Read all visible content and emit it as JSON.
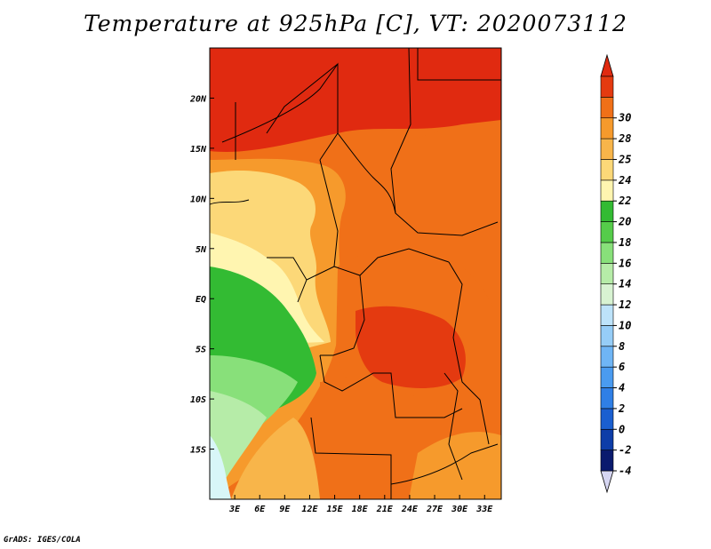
{
  "title": "Temperature at 925hPa [C], VT: 2020073112",
  "credit": "GrADS: IGES/COLA",
  "map": {
    "lon_range": [
      0,
      35
    ],
    "lat_range": [
      -20,
      25
    ],
    "lon_ticks": [
      {
        "value": 3,
        "label": "3E"
      },
      {
        "value": 6,
        "label": "6E"
      },
      {
        "value": 9,
        "label": "9E"
      },
      {
        "value": 12,
        "label": "12E"
      },
      {
        "value": 15,
        "label": "15E"
      },
      {
        "value": 18,
        "label": "18E"
      },
      {
        "value": 21,
        "label": "21E"
      },
      {
        "value": 24,
        "label": "24E"
      },
      {
        "value": 27,
        "label": "27E"
      },
      {
        "value": 30,
        "label": "30E"
      },
      {
        "value": 33,
        "label": "33E"
      }
    ],
    "lat_ticks": [
      {
        "value": 20,
        "label": "20N"
      },
      {
        "value": 15,
        "label": "15N"
      },
      {
        "value": 10,
        "label": "10N"
      },
      {
        "value": 5,
        "label": "5N"
      },
      {
        "value": 0,
        "label": "EQ"
      },
      {
        "value": -5,
        "label": "5S"
      },
      {
        "value": -10,
        "label": "10S"
      },
      {
        "value": -15,
        "label": "15S"
      }
    ]
  },
  "colorbar": {
    "levels": [
      "-4",
      "-2",
      "0",
      "2",
      "4",
      "6",
      "8",
      "10",
      "12",
      "14",
      "16",
      "18",
      "20",
      "22",
      "24",
      "25",
      "28",
      "30"
    ],
    "colors": [
      "#0a1a6e",
      "#0d3da8",
      "#1a5fd0",
      "#2f7fe6",
      "#4a9bf0",
      "#6fb5f5",
      "#96cdf7",
      "#bde3fa",
      "#d8f3d2",
      "#b6eca8",
      "#88e07a",
      "#55cc4a",
      "#33bb33",
      "#fff5b0",
      "#fcd878",
      "#f8b54a",
      "#f69a2c",
      "#f07018",
      "#e43a10"
    ],
    "low_color": "#d6d6f2",
    "high_color": "#e02a10"
  },
  "field": {
    "regions": [
      {
        "name": "north-hot",
        "color": "#e02a10"
      },
      {
        "name": "sahel-orange",
        "color": "#f07018"
      },
      {
        "name": "west-warm",
        "color": "#f69a2c"
      },
      {
        "name": "coast-yellow",
        "color": "#fcd878"
      },
      {
        "name": "cameroon-pale",
        "color": "#fff5b0"
      },
      {
        "name": "ocean-green",
        "color": "#33bb33"
      },
      {
        "name": "ocean-lightgreen",
        "color": "#88e07a"
      },
      {
        "name": "ocean-palegreen",
        "color": "#b6eca8"
      },
      {
        "name": "ocean-cyan",
        "color": "#d8f6f8"
      },
      {
        "name": "congo-orange",
        "color": "#f07018"
      },
      {
        "name": "congo-red",
        "color": "#e43a10"
      },
      {
        "name": "angola-orange",
        "color": "#f07018"
      },
      {
        "name": "namibia-yellow",
        "color": "#f8b54a"
      },
      {
        "name": "south-east-warm",
        "color": "#f69a2c"
      },
      {
        "name": "sudan-orange",
        "color": "#f07018"
      }
    ]
  }
}
